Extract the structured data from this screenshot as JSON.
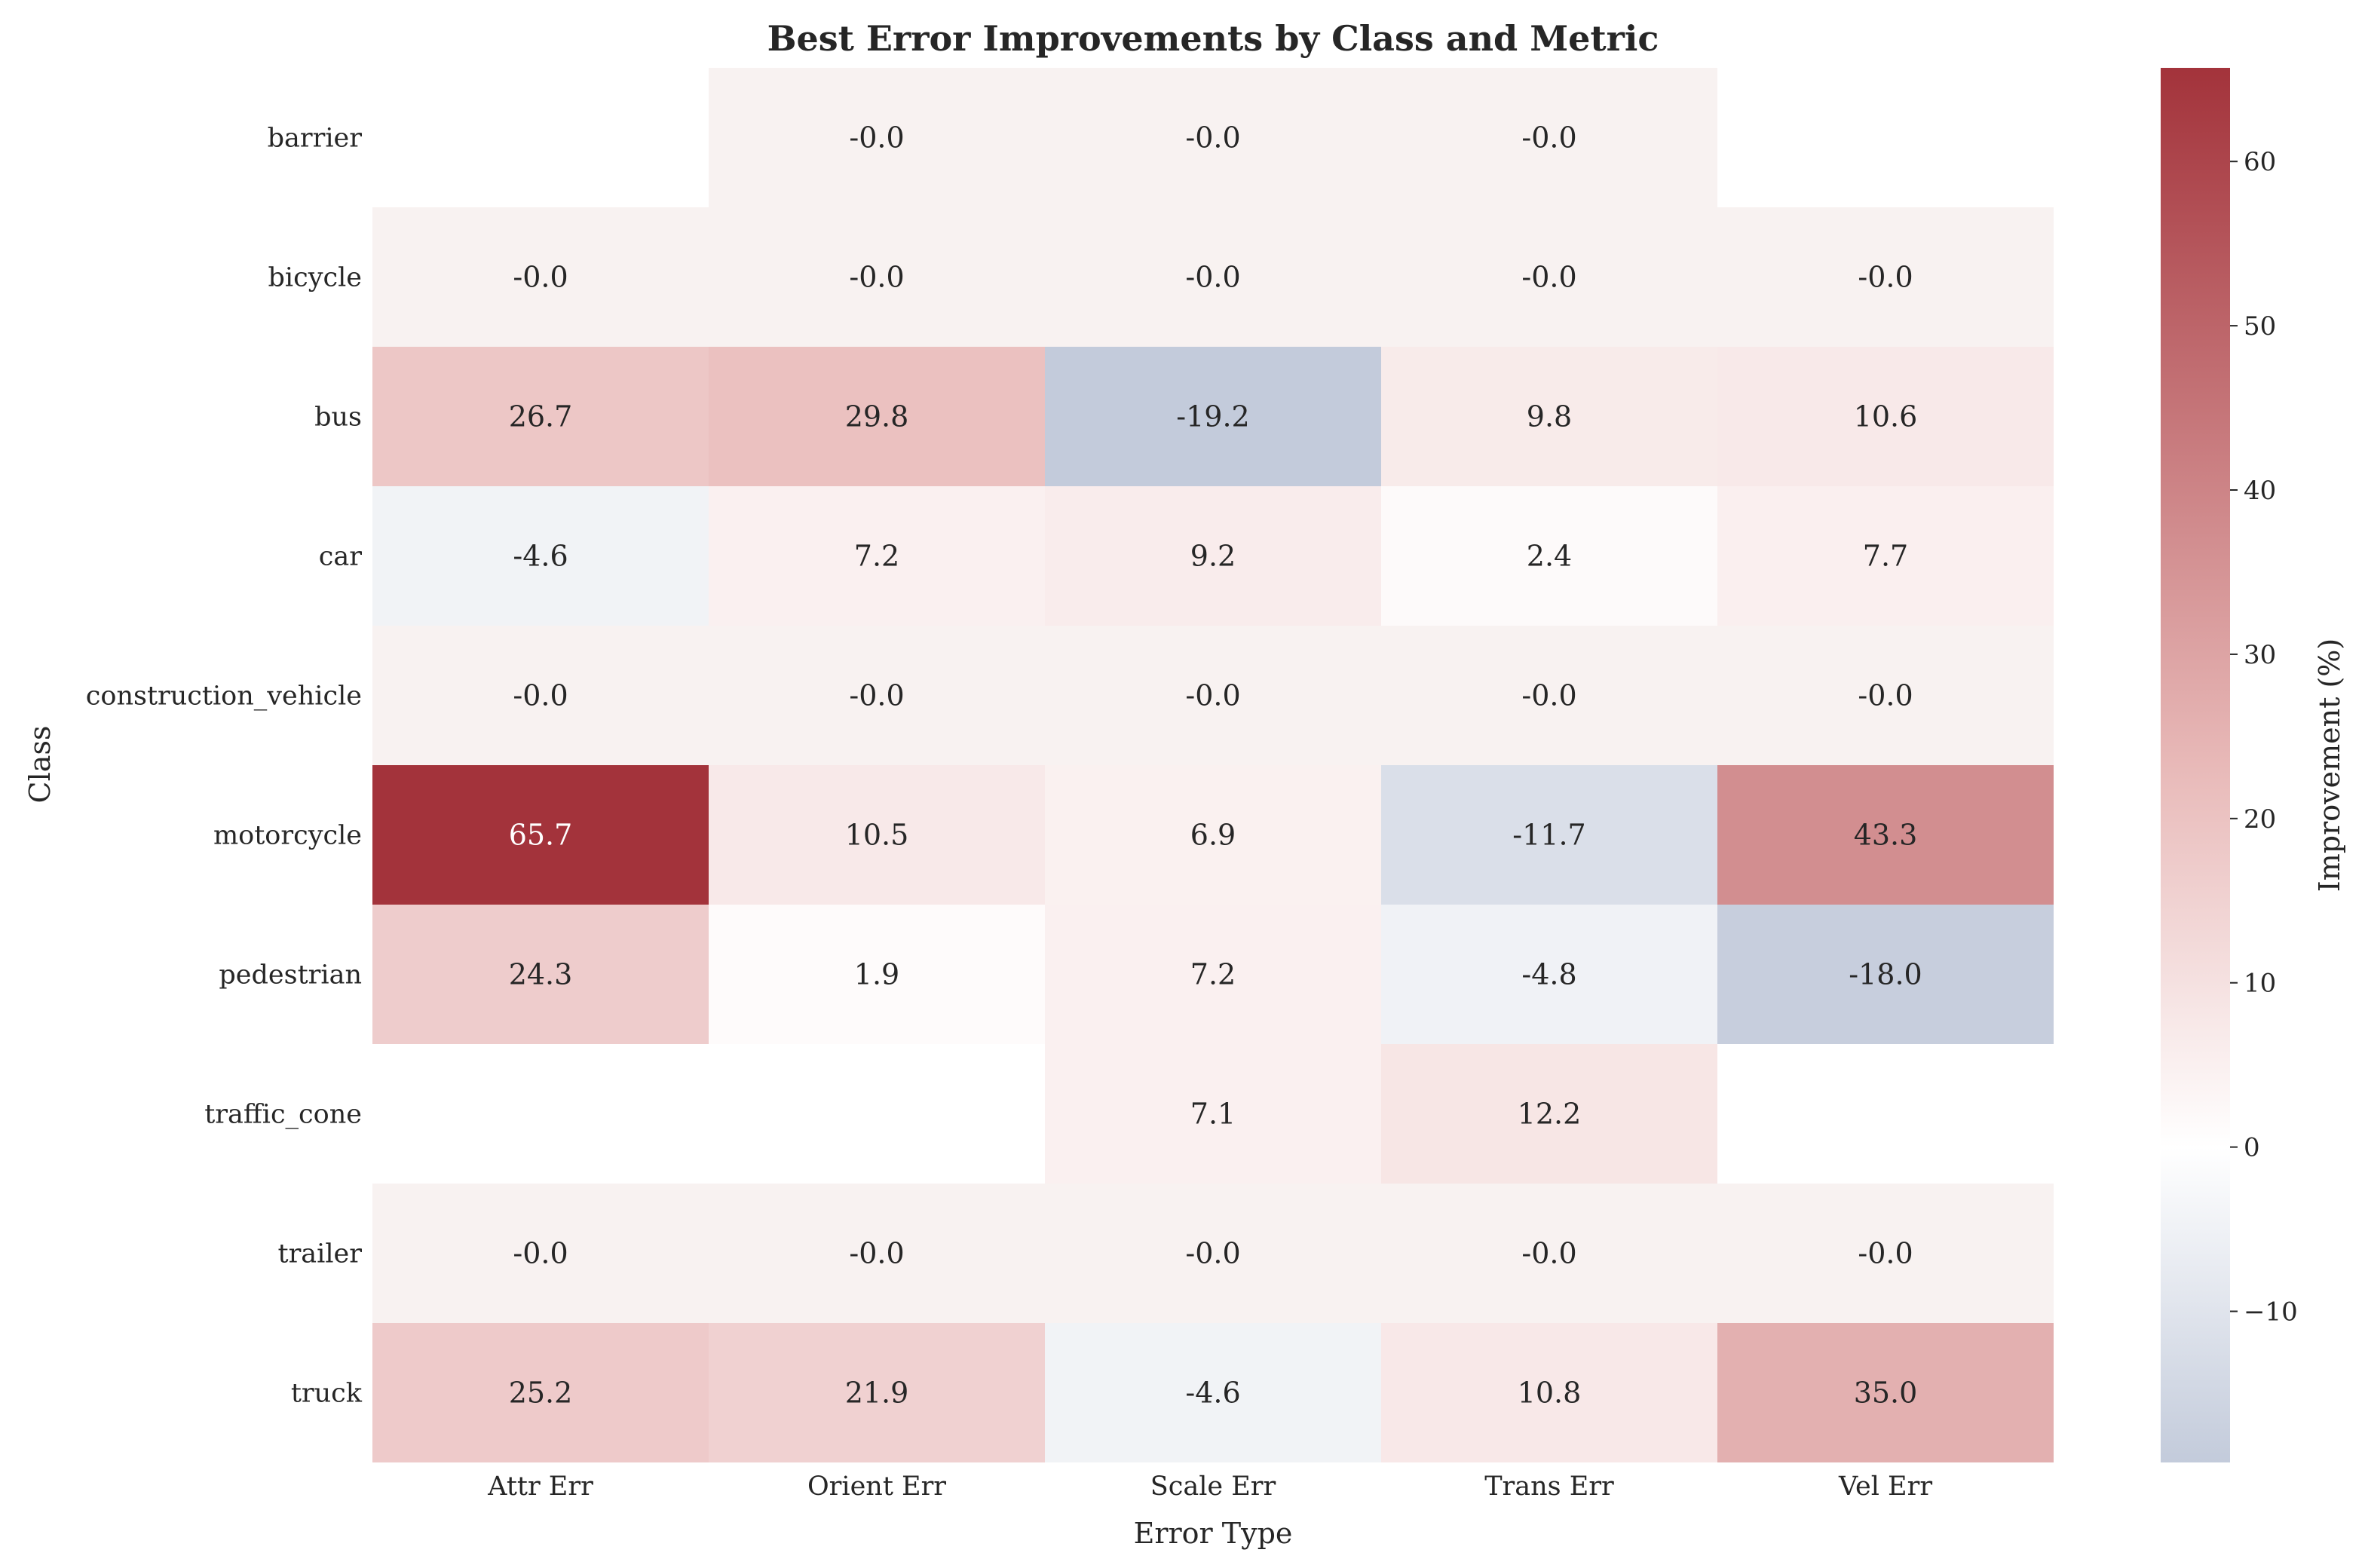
{
  "chart_data": {
    "type": "heatmap",
    "title": "Best Error Improvements by Class and Metric",
    "xlabel": "Error Type",
    "ylabel": "Class",
    "colorbar_label": "Improvement (%)",
    "colorbar_ticks": [
      {
        "value": -10,
        "label": "−10"
      },
      {
        "value": 0,
        "label": "0"
      },
      {
        "value": 10,
        "label": "10"
      },
      {
        "value": 20,
        "label": "20"
      },
      {
        "value": 30,
        "label": "30"
      },
      {
        "value": 40,
        "label": "40"
      },
      {
        "value": 50,
        "label": "50"
      },
      {
        "value": 60,
        "label": "60"
      }
    ],
    "color_range": [
      -19.2,
      65.7
    ],
    "colormap": {
      "negative": "#3b5a8c",
      "center": "#ffffff",
      "positive": "#a3333b"
    },
    "columns": [
      "Attr Err",
      "Orient Err",
      "Scale Err",
      "Trans Err",
      "Vel Err"
    ],
    "rows": [
      "barrier",
      "bicycle",
      "bus",
      "car",
      "construction_vehicle",
      "motorcycle",
      "pedestrian",
      "traffic_cone",
      "trailer",
      "truck"
    ],
    "values": [
      [
        null,
        -0.0,
        -0.0,
        -0.0,
        null
      ],
      [
        -0.0,
        -0.0,
        -0.0,
        -0.0,
        -0.0
      ],
      [
        26.7,
        29.8,
        -19.2,
        9.8,
        10.6
      ],
      [
        -4.6,
        7.2,
        9.2,
        2.4,
        7.7
      ],
      [
        -0.0,
        -0.0,
        -0.0,
        -0.0,
        -0.0
      ],
      [
        65.7,
        10.5,
        6.9,
        -11.7,
        43.3
      ],
      [
        24.3,
        1.9,
        7.2,
        -4.8,
        -18.0
      ],
      [
        null,
        null,
        7.1,
        12.2,
        null
      ],
      [
        -0.0,
        -0.0,
        -0.0,
        -0.0,
        -0.0
      ],
      [
        25.2,
        21.9,
        -4.6,
        10.8,
        35.0
      ]
    ],
    "labels": [
      [
        "",
        "-0.0",
        "-0.0",
        "-0.0",
        ""
      ],
      [
        "-0.0",
        "-0.0",
        "-0.0",
        "-0.0",
        "-0.0"
      ],
      [
        "26.7",
        "29.8",
        "-19.2",
        "9.8",
        "10.6"
      ],
      [
        "-4.6",
        "7.2",
        "9.2",
        "2.4",
        "7.7"
      ],
      [
        "-0.0",
        "-0.0",
        "-0.0",
        "-0.0",
        "-0.0"
      ],
      [
        "65.7",
        "10.5",
        "6.9",
        "-11.7",
        "43.3"
      ],
      [
        "24.3",
        "1.9",
        "7.2",
        "-4.8",
        "-18.0"
      ],
      [
        "",
        "",
        "7.1",
        "12.2",
        ""
      ],
      [
        "-0.0",
        "-0.0",
        "-0.0",
        "-0.0",
        "-0.0"
      ],
      [
        "25.2",
        "21.9",
        "-4.6",
        "10.8",
        "35.0"
      ]
    ]
  }
}
